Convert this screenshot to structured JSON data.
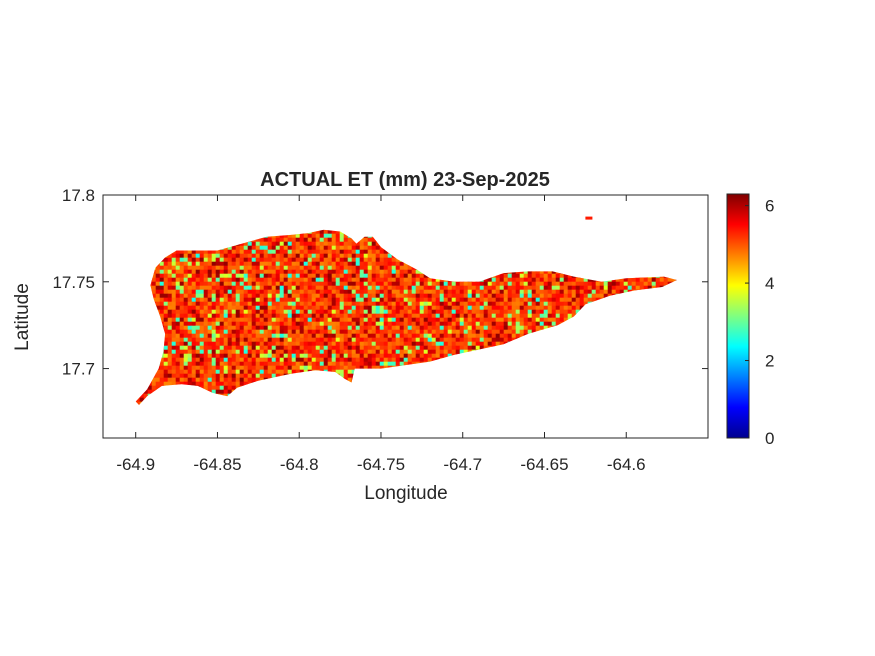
{
  "chart_data": {
    "type": "heatmap",
    "title": "ACTUAL ET (mm) 23-Sep-2025",
    "xlabel": "Longitude",
    "ylabel": "Latitude",
    "xlim": [
      -64.92,
      -64.55
    ],
    "ylim": [
      17.66,
      17.8
    ],
    "xticks": [
      -64.9,
      -64.85,
      -64.8,
      -64.75,
      -64.7,
      -64.65,
      -64.6
    ],
    "xtick_labels": [
      "-64.9",
      "-64.85",
      "-64.8",
      "-64.75",
      "-64.7",
      "-64.65",
      "-64.6"
    ],
    "yticks": [
      17.7,
      17.75,
      17.8
    ],
    "ytick_labels": [
      "17.7",
      "17.75",
      "17.8"
    ],
    "colorbar": {
      "colormap": "jet",
      "range": [
        0,
        6.3
      ],
      "ticks": [
        0,
        2,
        4,
        6
      ],
      "tick_labels": [
        "0",
        "2",
        "4",
        "6"
      ]
    },
    "grid": false,
    "island_outline_lonlat": [
      [
        -64.898,
        17.679
      ],
      [
        -64.893,
        17.684
      ],
      [
        -64.884,
        17.69
      ],
      [
        -64.872,
        17.691
      ],
      [
        -64.862,
        17.69
      ],
      [
        -64.853,
        17.686
      ],
      [
        -64.844,
        17.684
      ],
      [
        -64.838,
        17.689
      ],
      [
        -64.825,
        17.693
      ],
      [
        -64.805,
        17.697
      ],
      [
        -64.79,
        17.699
      ],
      [
        -64.778,
        17.698
      ],
      [
        -64.772,
        17.694
      ],
      [
        -64.768,
        17.692
      ],
      [
        -64.766,
        17.7
      ],
      [
        -64.75,
        17.7
      ],
      [
        -64.735,
        17.702
      ],
      [
        -64.72,
        17.704
      ],
      [
        -64.705,
        17.708
      ],
      [
        -64.69,
        17.711
      ],
      [
        -64.675,
        17.714
      ],
      [
        -64.66,
        17.72
      ],
      [
        -64.642,
        17.725
      ],
      [
        -64.632,
        17.73
      ],
      [
        -64.625,
        17.737
      ],
      [
        -64.61,
        17.742
      ],
      [
        -64.595,
        17.745
      ],
      [
        -64.578,
        17.747
      ],
      [
        -64.569,
        17.751
      ],
      [
        -64.577,
        17.753
      ],
      [
        -64.6,
        17.752
      ],
      [
        -64.615,
        17.75
      ],
      [
        -64.632,
        17.753
      ],
      [
        -64.645,
        17.756
      ],
      [
        -64.66,
        17.756
      ],
      [
        -64.675,
        17.755
      ],
      [
        -64.69,
        17.75
      ],
      [
        -64.705,
        17.75
      ],
      [
        -64.72,
        17.752
      ],
      [
        -64.728,
        17.757
      ],
      [
        -64.74,
        17.763
      ],
      [
        -64.75,
        17.77
      ],
      [
        -64.755,
        17.776
      ],
      [
        -64.76,
        17.776
      ],
      [
        -64.765,
        17.772
      ],
      [
        -64.768,
        17.775
      ],
      [
        -64.775,
        17.779
      ],
      [
        -64.785,
        17.78
      ],
      [
        -64.795,
        17.778
      ],
      [
        -64.805,
        17.777
      ],
      [
        -64.82,
        17.776
      ],
      [
        -64.835,
        17.772
      ],
      [
        -64.85,
        17.768
      ],
      [
        -64.865,
        17.768
      ],
      [
        -64.875,
        17.768
      ],
      [
        -64.882,
        17.764
      ],
      [
        -64.888,
        17.758
      ],
      [
        -64.891,
        17.748
      ],
      [
        -64.889,
        17.74
      ],
      [
        -64.885,
        17.73
      ],
      [
        -64.882,
        17.72
      ],
      [
        -64.883,
        17.71
      ],
      [
        -64.886,
        17.7
      ],
      [
        -64.893,
        17.688
      ],
      [
        -64.9,
        17.681
      ]
    ],
    "value_distribution_mm": {
      "typical_min": 2.5,
      "typical_max": 6.2,
      "dominant": 5.0
    }
  }
}
